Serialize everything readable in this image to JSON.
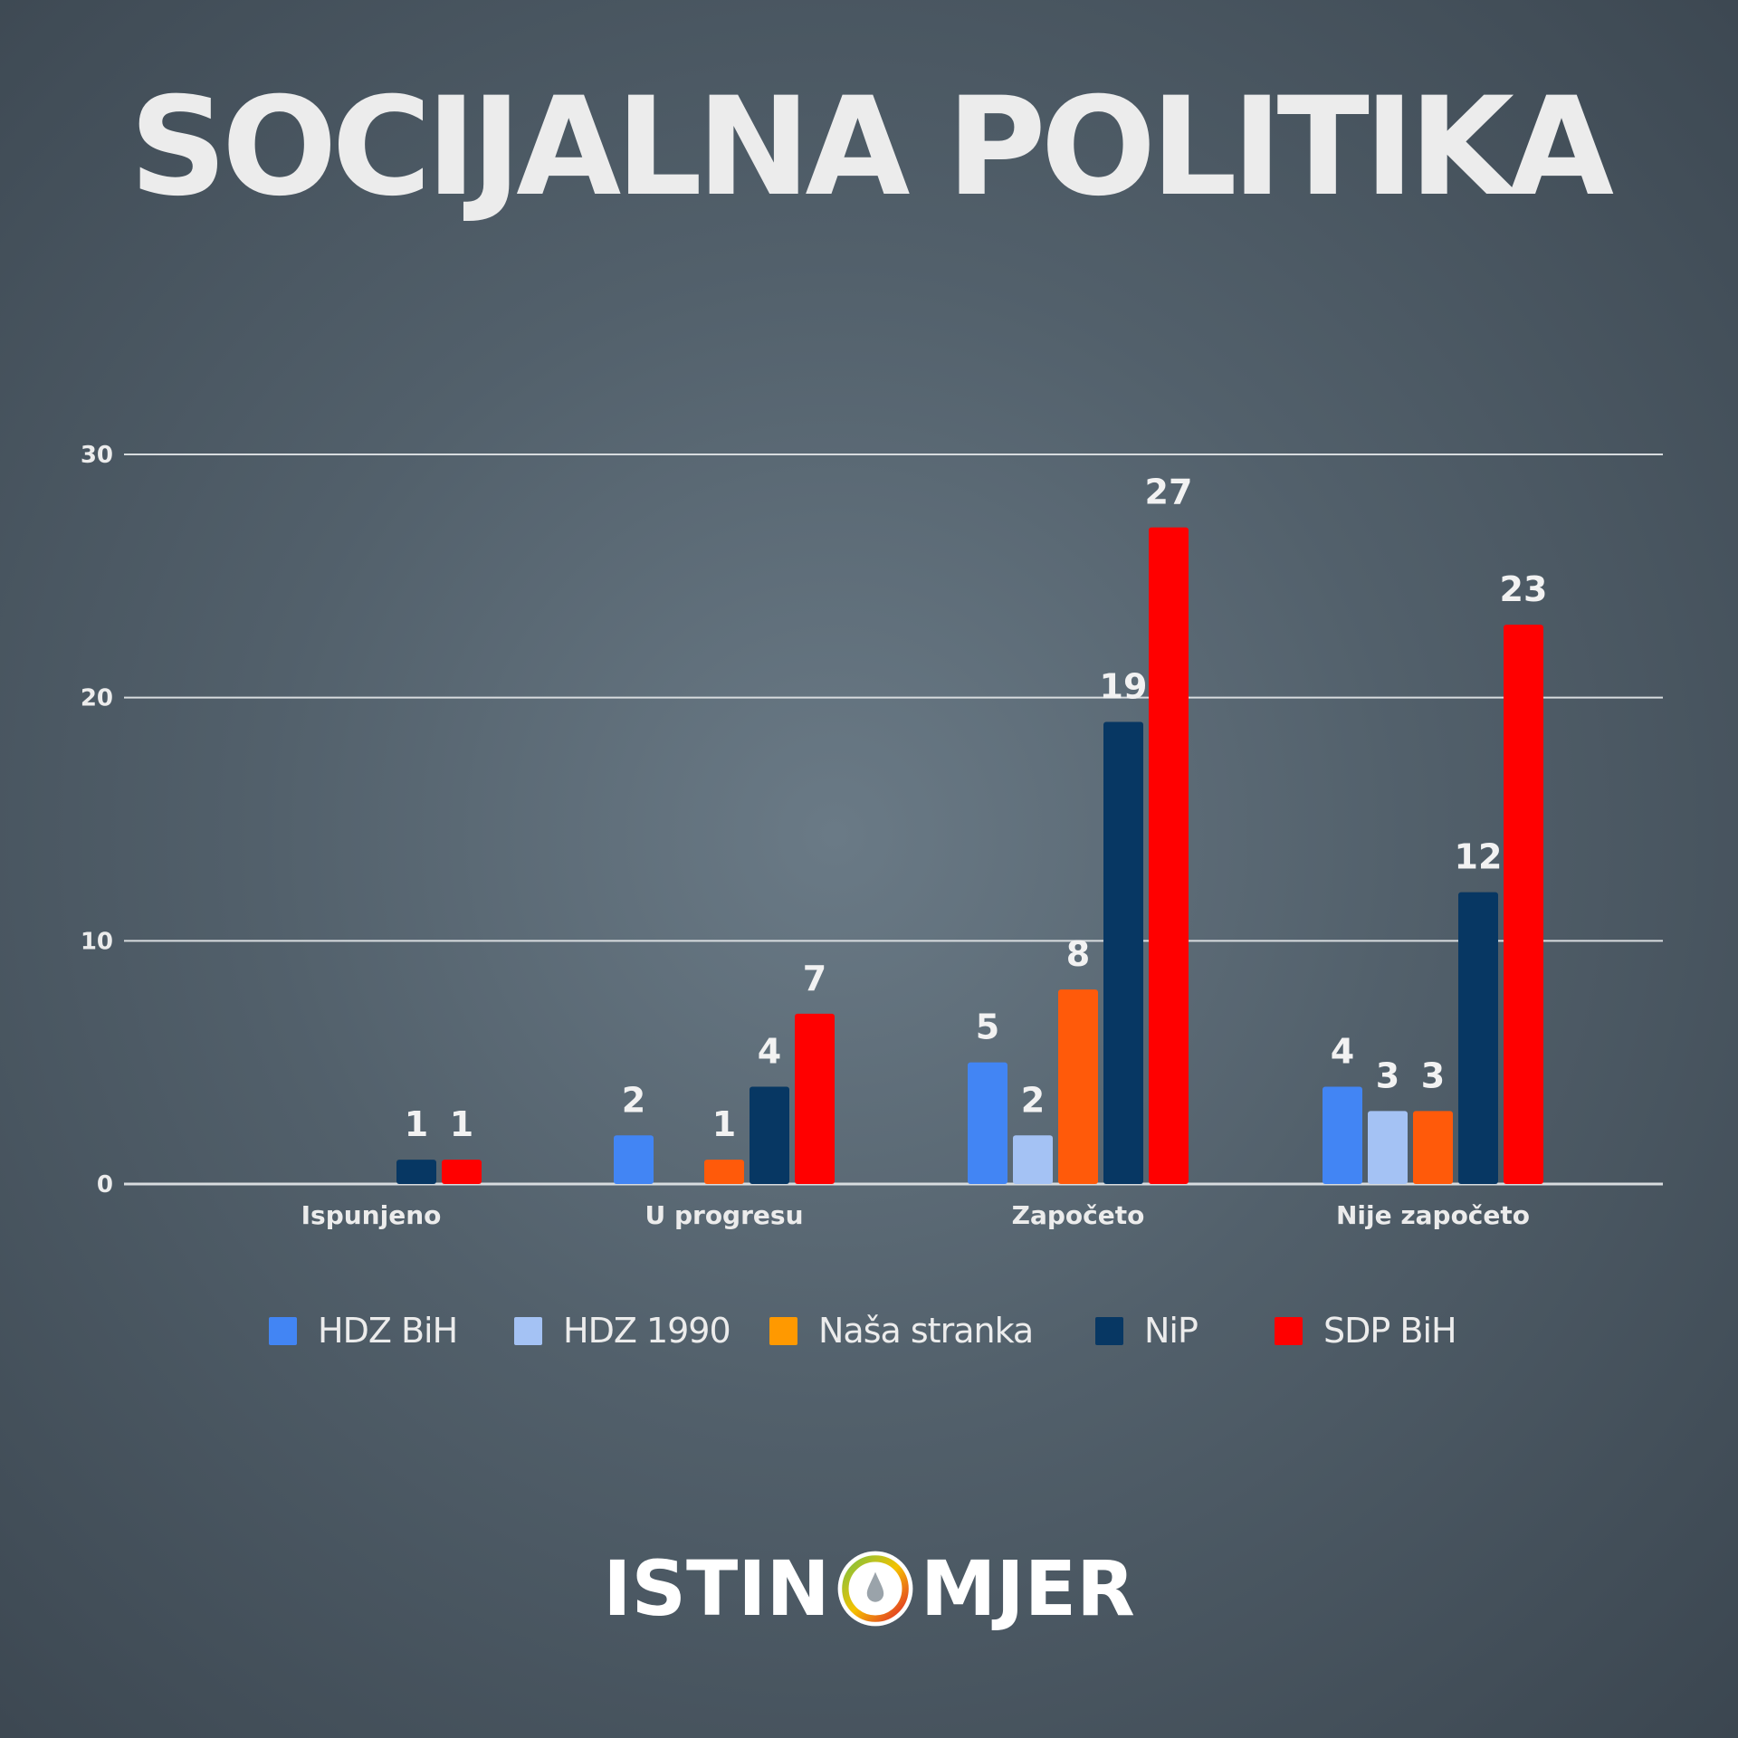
{
  "title": "SOCIJALNA POLITIKA",
  "logo": {
    "text_left": "ISTIN",
    "text_right": "MJER"
  },
  "colors": {
    "background": "#52606b",
    "grid": "#d8dcdf",
    "text": "#ececec"
  },
  "chart_data": {
    "type": "bar",
    "title": "SOCIJALNA POLITIKA",
    "categories": [
      "Ispunjeno",
      "U progresu",
      "Započeto",
      "Nije započeto"
    ],
    "ylim": [
      0,
      30
    ],
    "yticks": [
      0,
      10,
      20,
      30
    ],
    "grid": true,
    "legend_position": "bottom",
    "series": [
      {
        "name": "HDZ BiH",
        "color": "#4285f4",
        "values": [
          0,
          2,
          5,
          4
        ]
      },
      {
        "name": "HDZ 1990",
        "color": "#a4c2f4",
        "values": [
          0,
          0,
          2,
          3
        ]
      },
      {
        "name": "Naša stranka",
        "color": "#ff5a0a",
        "legend_color": "#ff9900",
        "values": [
          0,
          1,
          8,
          3
        ]
      },
      {
        "name": "NiP",
        "color": "#073763",
        "values": [
          1,
          4,
          19,
          12
        ]
      },
      {
        "name": "SDP BiH",
        "color": "#ff0000",
        "values": [
          1,
          7,
          27,
          23
        ]
      }
    ]
  }
}
